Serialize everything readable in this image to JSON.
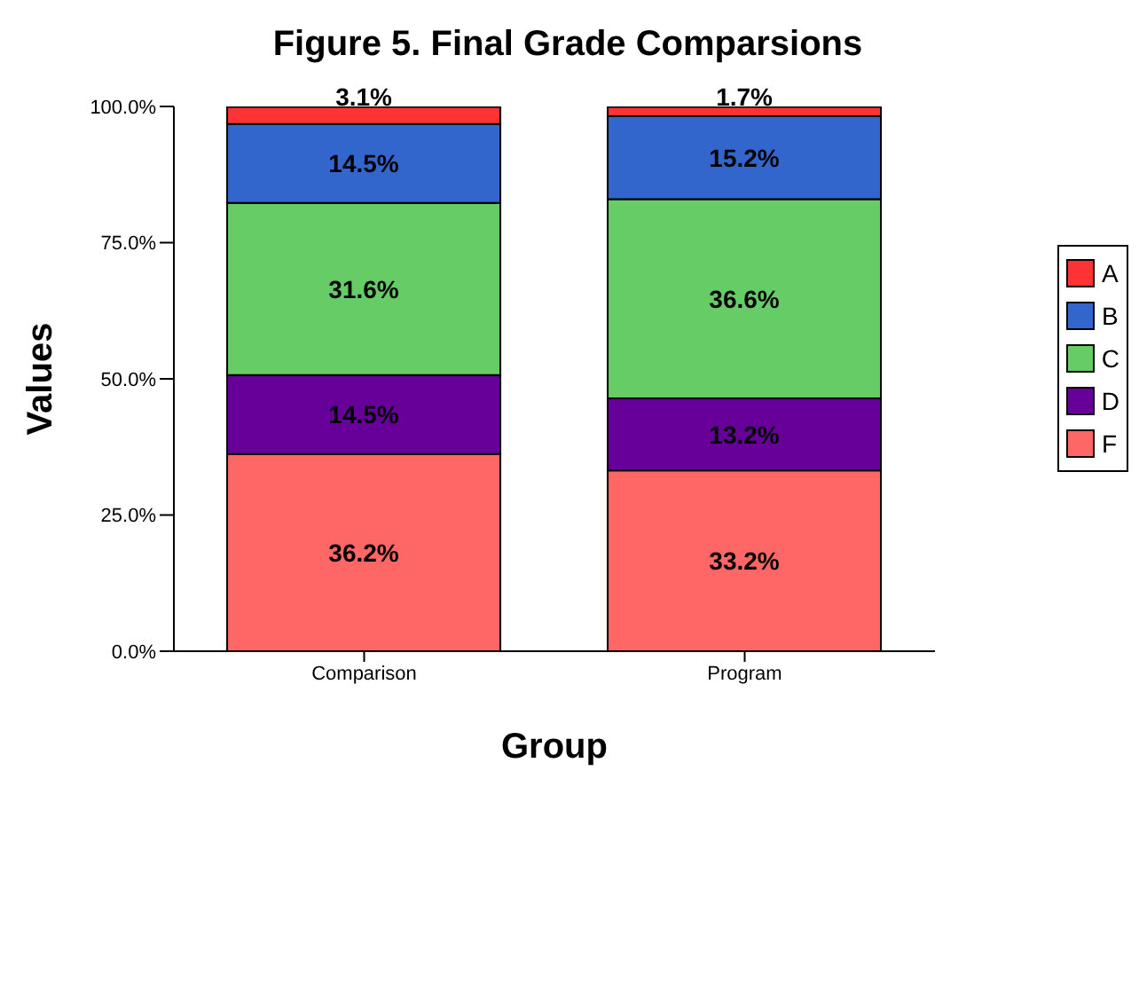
{
  "chart_data": {
    "type": "bar",
    "title": "Figure 5. Final Grade Comparsions",
    "xlabel": "Group",
    "ylabel": "Values",
    "categories": [
      "Comparison",
      "Program"
    ],
    "stacked": true,
    "ylim": [
      0,
      100
    ],
    "yticks": [
      {
        "value": 0,
        "label": "0.0%"
      },
      {
        "value": 25,
        "label": "25.0%"
      },
      {
        "value": 50,
        "label": "50.0%"
      },
      {
        "value": 75,
        "label": "75.0%"
      },
      {
        "value": 100,
        "label": "100.0%"
      }
    ],
    "grid": false,
    "legend": "right",
    "series": [
      {
        "name": "F",
        "color": "#ff6666",
        "values": [
          36.2,
          33.2
        ],
        "value_labels": [
          "36.2%",
          "33.2%"
        ]
      },
      {
        "name": "D",
        "color": "#660099",
        "values": [
          14.5,
          13.2
        ],
        "value_labels": [
          "14.5%",
          "13.2%"
        ]
      },
      {
        "name": "C",
        "color": "#66cc66",
        "values": [
          31.6,
          36.6
        ],
        "value_labels": [
          "31.6%",
          "36.6%"
        ]
      },
      {
        "name": "B",
        "color": "#3366cc",
        "values": [
          14.5,
          15.2
        ],
        "value_labels": [
          "14.5%",
          "15.2%"
        ]
      },
      {
        "name": "A",
        "color": "#ff3333",
        "values": [
          3.1,
          1.7
        ],
        "value_labels": [
          "3.1%",
          "1.7%"
        ]
      }
    ]
  }
}
